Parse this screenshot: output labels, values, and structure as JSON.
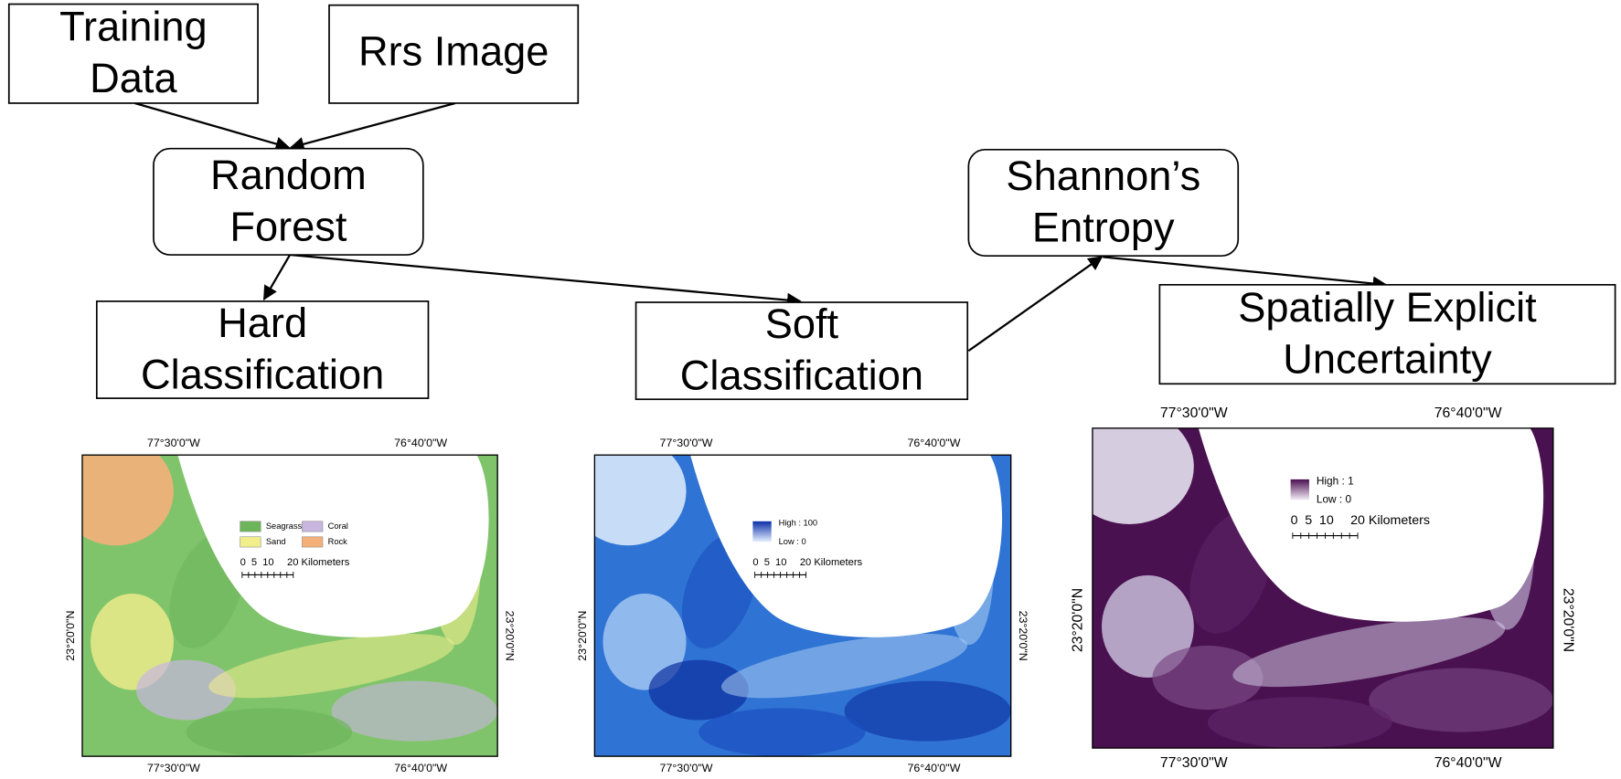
{
  "nodes": [
    {
      "label": [
        "Training",
        "Data"
      ]
    },
    {
      "label": [
        "Rrs Image"
      ]
    },
    {
      "label": [
        "Random",
        "Forest"
      ]
    },
    {
      "label": [
        "Shannon’s",
        "Entropy"
      ]
    },
    {
      "label": [
        "Hard",
        "Classification"
      ]
    },
    {
      "label": [
        "Soft",
        "Classification"
      ]
    },
    {
      "label": [
        "Spatially Explicit",
        "Uncertainty"
      ]
    }
  ],
  "maps": [
    {
      "top_labels": [
        "77°30'0\"W",
        "76°40'0\"W"
      ],
      "bottom_labels": [
        "77°30'0\"W",
        "76°40'0\"W"
      ],
      "left_label": "23°20'0\"N",
      "right_label": "23°20'0\"N",
      "legend": [
        "Seagrass",
        "Coral",
        "Sand",
        "Rock"
      ],
      "scale": [
        "0",
        "5",
        "10",
        "20 Kilometers"
      ]
    },
    {
      "top_labels": [
        "77°30'0\"W",
        "76°40'0\"W"
      ],
      "bottom_labels": [
        "77°30'0\"W",
        "76°40'0\"W"
      ],
      "left_label": "23°20'0\"N",
      "right_label": "23°20'0\"N",
      "legend": [
        "High : 100",
        "Low : 0"
      ],
      "scale": [
        "0",
        "5",
        "10",
        "20 Kilometers"
      ]
    },
    {
      "top_labels": [
        "77°30'0\"W",
        "76°40'0\"W"
      ],
      "bottom_labels": [
        "77°30'0\"W",
        "76°40'0\"W"
      ],
      "left_label": "23°20'0\"N",
      "right_label": "23°20'0\"N",
      "legend": [
        "High : 1",
        "Low : 0"
      ],
      "scale": [
        "0",
        "5",
        "10",
        "20 Kilometers"
      ]
    }
  ]
}
